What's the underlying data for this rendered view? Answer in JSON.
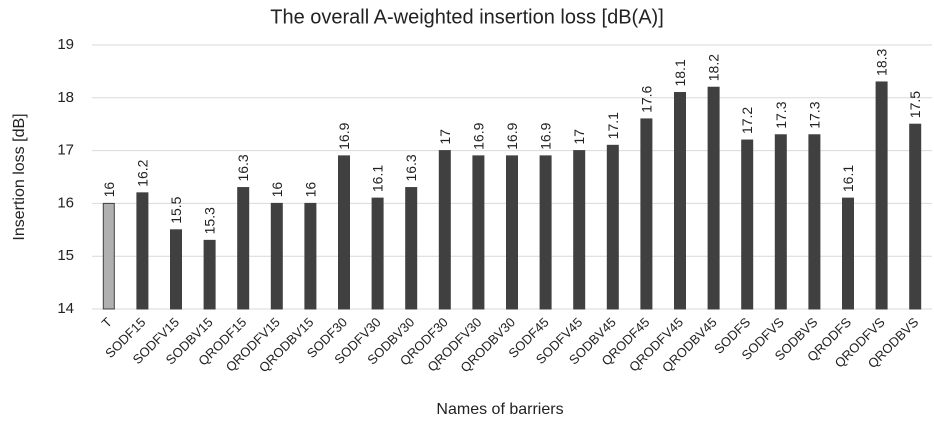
{
  "chart_data": {
    "type": "bar",
    "title": "The overall A-weighted insertion loss [dB(A)]",
    "x_label": "Names of barriers",
    "y_label": "Insertion loss [dB]",
    "categories": [
      "T",
      "SODF15",
      "SODFV15",
      "SODBV15",
      "QRODF15",
      "QRODFV15",
      "QRODBV15",
      "SODF30",
      "SODFV30",
      "SODBV30",
      "QRODF30",
      "QRODFV30",
      "QRODBV30",
      "SODF45",
      "SODFV45",
      "SODBV45",
      "QRODF45",
      "QRODFV45",
      "QRODBV45",
      "SODFS",
      "SODFVS",
      "SODBVS",
      "QRODFS",
      "QRODFVS",
      "QRODBVS"
    ],
    "values": [
      16,
      16.2,
      15.5,
      15.3,
      16.3,
      16,
      16,
      16.9,
      16.1,
      16.3,
      17,
      16.9,
      16.9,
      16.9,
      17,
      17.1,
      17.6,
      18.1,
      18.2,
      17.2,
      17.3,
      17.3,
      16.1,
      18.3,
      17.5
    ],
    "colors": [
      "#b0b0b0",
      "#404040",
      "#404040",
      "#404040",
      "#404040",
      "#404040",
      "#404040",
      "#404040",
      "#404040",
      "#404040",
      "#404040",
      "#404040",
      "#404040",
      "#404040",
      "#404040",
      "#404040",
      "#404040",
      "#404040",
      "#404040",
      "#404040",
      "#404040",
      "#404040",
      "#404040",
      "#404040",
      "#404040"
    ],
    "ylim": [
      14,
      19
    ],
    "yticks": [
      14,
      15,
      16,
      17,
      18,
      19
    ],
    "grid": true
  }
}
